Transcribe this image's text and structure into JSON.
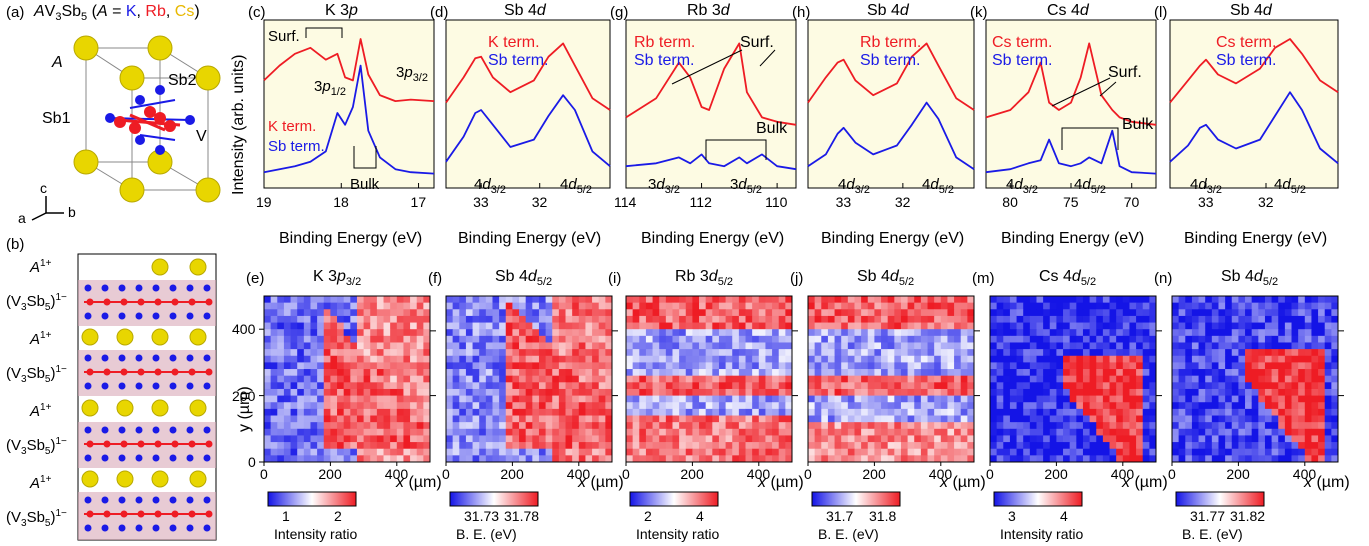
{
  "colors": {
    "red": "#ee1c24",
    "blue": "#1a1ae6",
    "K": "#1a1ae6",
    "Rb": "#ee1c24",
    "Cs": "#e8b800",
    "yellow": "#e8d600",
    "pink": "#d9a8b8"
  },
  "panel_a": {
    "label": "(a)",
    "title_parts": [
      "AV",
      "3",
      "Sb",
      "5",
      " (A = ",
      "K",
      ", ",
      "Rb",
      ", ",
      "Cs",
      ")"
    ],
    "A": "A",
    "Sb2": "Sb2",
    "Sb1": "Sb1",
    "V": "V",
    "ax_c": "c",
    "ax_a": "a",
    "ax_b": "b"
  },
  "panel_b": {
    "label": "(b)",
    "rows": [
      "A1+",
      "(V3Sb5)1−",
      "A1+",
      "(V3Sb5)1−",
      "A1+",
      "(V3Sb5)1−",
      "A1+",
      "(V3Sb5)1−"
    ]
  },
  "spectra": [
    {
      "label": "(c)",
      "title": "K 3p",
      "xticks": [
        "19",
        "18",
        "17"
      ],
      "xlabel": "Binding Energy (eV)",
      "annot": [
        "Surf.",
        "3p1/2",
        "3p3/2",
        "Bulk",
        "K term.",
        "Sb term."
      ]
    },
    {
      "label": "(d)",
      "title": "Sb 4d",
      "xticks": [
        "33",
        "32"
      ],
      "xlabel": "Binding Energy (eV)",
      "annot": [
        "K term.",
        "Sb term.",
        "4d3/2",
        "4d5/2"
      ]
    },
    {
      "label": "(g)",
      "title": "Rb 3d",
      "xticks": [
        "114",
        "112",
        "110"
      ],
      "xlabel": "Binding Energy (eV)",
      "annot": [
        "Rb term.",
        "Sb term.",
        "Surf.",
        "Bulk",
        "3d3/2",
        "3d5/2"
      ]
    },
    {
      "label": "(h)",
      "title": "Sb 4d",
      "xticks": [
        "33",
        "32"
      ],
      "xlabel": "Binding Energy (eV)",
      "annot": [
        "Rb term.",
        "Sb term.",
        "4d3/2",
        "4d5/2"
      ]
    },
    {
      "label": "(k)",
      "title": "Cs 4d",
      "xticks": [
        "80",
        "75",
        "70"
      ],
      "xlabel": "Binding Energy (eV)",
      "annot": [
        "Cs term.",
        "Sb term.",
        "Surf.",
        "Bulk",
        "4d3/2",
        "4d5/2"
      ]
    },
    {
      "label": "(l)",
      "title": "Sb 4d",
      "xticks": [
        "33",
        "32"
      ],
      "xlabel": "Binding Energy (eV)",
      "annot": [
        "Cs term.",
        "Sb term.",
        "4d3/2",
        "4d5/2"
      ]
    }
  ],
  "maps": [
    {
      "label": "(e)",
      "title": "K 3p3/2",
      "cbar_ticks": [
        "1",
        "2"
      ],
      "cbar_label": "Intensity ratio"
    },
    {
      "label": "(f)",
      "title": "Sb 4d5/2",
      "cbar_ticks": [
        "31.73",
        "31.78"
      ],
      "cbar_label": "B. E. (eV)"
    },
    {
      "label": "(i)",
      "title": "Rb 3d5/2",
      "cbar_ticks": [
        "2",
        "4"
      ],
      "cbar_label": "Intensity ratio"
    },
    {
      "label": "(j)",
      "title": "Sb 4d5/2",
      "cbar_ticks": [
        "31.7",
        "31.8"
      ],
      "cbar_label": "B. E. (eV)"
    },
    {
      "label": "(m)",
      "title": "Cs 4d5/2",
      "cbar_ticks": [
        "3",
        "4"
      ],
      "cbar_label": "Intensity ratio"
    },
    {
      "label": "(n)",
      "title": "Sb 4d5/2",
      "cbar_ticks": [
        "31.77",
        "31.82"
      ],
      "cbar_label": "B. E. (eV)"
    }
  ],
  "y_axis_label": "Intensity (arb. units)",
  "map_axes": {
    "xticks": [
      "0",
      "200",
      "400"
    ],
    "yticks": [
      "0",
      "200",
      "400"
    ],
    "xlabel": "x (µm)",
    "ylabel": "y (µm)"
  },
  "chart_data": [
    {
      "type": "line",
      "title": "K 3p",
      "xlabel": "Binding Energy (eV)",
      "ylabel": "Intensity (arb. units)",
      "xlim": [
        19,
        16.8
      ],
      "series": [
        {
          "name": "K term.",
          "x": [
            19,
            18.8,
            18.6,
            18.4,
            18.2,
            18.05,
            17.95,
            17.85,
            17.75,
            17.65,
            17.5,
            17.3,
            17.1,
            16.8
          ],
          "values": [
            0.7,
            0.8,
            0.88,
            0.92,
            0.84,
            0.88,
            0.72,
            0.7,
            0.98,
            0.74,
            0.6,
            0.56,
            0.57,
            0.56
          ]
        },
        {
          "name": "Sb term.",
          "x": [
            19,
            18.8,
            18.6,
            18.4,
            18.2,
            18.05,
            17.95,
            17.85,
            17.75,
            17.65,
            17.5,
            17.3,
            17.1,
            16.8
          ],
          "values": [
            0.08,
            0.1,
            0.12,
            0.15,
            0.22,
            0.48,
            0.4,
            0.52,
            0.8,
            0.36,
            0.18,
            0.1,
            0.08,
            0.07
          ]
        }
      ]
    },
    {
      "type": "line",
      "title": "Sb 4d",
      "xlabel": "Binding Energy (eV)",
      "ylabel": "",
      "xlim": [
        33.6,
        30.8
      ],
      "series": [
        {
          "name": "K term.",
          "x": [
            33.6,
            33.3,
            33.1,
            33.0,
            32.8,
            32.5,
            32.1,
            31.85,
            31.6,
            31.4,
            31.1,
            30.8
          ],
          "values": [
            0.55,
            0.72,
            0.85,
            0.86,
            0.72,
            0.62,
            0.7,
            0.86,
            0.95,
            0.8,
            0.58,
            0.5
          ]
        },
        {
          "name": "Sb term.",
          "x": [
            33.6,
            33.3,
            33.1,
            33.0,
            32.8,
            32.5,
            32.1,
            31.85,
            31.6,
            31.4,
            31.1,
            30.8
          ],
          "values": [
            0.15,
            0.32,
            0.48,
            0.5,
            0.4,
            0.25,
            0.3,
            0.46,
            0.6,
            0.5,
            0.22,
            0.12
          ]
        }
      ]
    },
    {
      "type": "line",
      "title": "Rb 3d",
      "xlabel": "Binding Energy (eV)",
      "ylabel": "",
      "xlim": [
        114,
        109.5
      ],
      "series": [
        {
          "name": "Rb term.",
          "x": [
            114,
            113.2,
            112.6,
            112.3,
            112.0,
            111.8,
            111.4,
            111.0,
            110.8,
            110.4,
            110.0,
            109.5
          ],
          "values": [
            0.45,
            0.58,
            0.82,
            0.72,
            0.52,
            0.5,
            0.78,
            0.95,
            0.62,
            0.45,
            0.42,
            0.4
          ]
        },
        {
          "name": "Sb term.",
          "x": [
            114,
            113.2,
            112.6,
            112.3,
            112.0,
            111.8,
            111.4,
            111.0,
            110.8,
            110.4,
            110.0,
            109.5
          ],
          "values": [
            0.12,
            0.14,
            0.18,
            0.14,
            0.2,
            0.14,
            0.12,
            0.18,
            0.14,
            0.2,
            0.12,
            0.1
          ]
        }
      ]
    },
    {
      "type": "line",
      "title": "Sb 4d",
      "xlabel": "Binding Energy (eV)",
      "ylabel": "",
      "xlim": [
        33.6,
        30.8
      ],
      "series": [
        {
          "name": "Rb term.",
          "x": [
            33.6,
            33.3,
            33.1,
            33.0,
            32.8,
            32.5,
            32.1,
            31.85,
            31.6,
            31.4,
            31.1,
            30.8
          ],
          "values": [
            0.55,
            0.72,
            0.82,
            0.84,
            0.7,
            0.6,
            0.68,
            0.86,
            0.95,
            0.8,
            0.58,
            0.5
          ]
        },
        {
          "name": "Sb term.",
          "x": [
            33.6,
            33.3,
            33.1,
            33.0,
            32.8,
            32.5,
            32.1,
            31.85,
            31.6,
            31.4,
            31.1,
            30.8
          ],
          "values": [
            0.12,
            0.2,
            0.34,
            0.38,
            0.28,
            0.2,
            0.26,
            0.4,
            0.55,
            0.44,
            0.18,
            0.1
          ]
        }
      ]
    },
    {
      "type": "line",
      "title": "Cs 4d",
      "xlabel": "Binding Energy (eV)",
      "ylabel": "",
      "xlim": [
        82,
        68
      ],
      "series": [
        {
          "name": "Cs term.",
          "x": [
            82,
            80,
            78.5,
            77.5,
            76.8,
            76,
            75,
            74.2,
            73.5,
            72.5,
            71.6,
            71,
            70,
            68
          ],
          "values": [
            0.45,
            0.5,
            0.62,
            0.82,
            0.55,
            0.5,
            0.55,
            0.72,
            0.95,
            0.6,
            0.5,
            0.45,
            0.42,
            0.4
          ]
        },
        {
          "name": "Sb term.",
          "x": [
            82,
            80,
            78.5,
            77.5,
            76.8,
            76,
            75,
            74.2,
            73.5,
            72.5,
            71.6,
            71,
            70,
            68
          ],
          "values": [
            0.08,
            0.1,
            0.14,
            0.16,
            0.3,
            0.14,
            0.12,
            0.14,
            0.18,
            0.14,
            0.36,
            0.12,
            0.08,
            0.07
          ]
        }
      ]
    },
    {
      "type": "line",
      "title": "Sb 4d",
      "xlabel": "Binding Energy (eV)",
      "ylabel": "",
      "xlim": [
        33.6,
        30.8
      ],
      "series": [
        {
          "name": "Cs term.",
          "x": [
            33.6,
            33.3,
            33.1,
            33.0,
            32.8,
            32.5,
            32.1,
            31.85,
            31.6,
            31.4,
            31.1,
            30.8
          ],
          "values": [
            0.55,
            0.7,
            0.8,
            0.84,
            0.74,
            0.68,
            0.78,
            0.92,
            0.98,
            0.88,
            0.7,
            0.62
          ]
        },
        {
          "name": "Sb term.",
          "x": [
            33.6,
            33.3,
            33.1,
            33.0,
            32.8,
            32.5,
            32.1,
            31.85,
            31.6,
            31.4,
            31.1,
            30.8
          ],
          "values": [
            0.15,
            0.26,
            0.38,
            0.4,
            0.3,
            0.24,
            0.3,
            0.46,
            0.62,
            0.5,
            0.24,
            0.14
          ]
        }
      ]
    },
    {
      "type": "heatmap",
      "title": "K 3p3/2",
      "xlabel": "x (µm)",
      "ylabel": "y (µm)",
      "xlim": [
        0,
        500
      ],
      "ylim": [
        0,
        500
      ],
      "colorbar": {
        "label": "Intensity ratio",
        "range": [
          0.5,
          2.3
        ]
      }
    },
    {
      "type": "heatmap",
      "title": "Sb 4d5/2",
      "xlabel": "x (µm)",
      "ylabel": "y (µm)",
      "xlim": [
        0,
        500
      ],
      "ylim": [
        0,
        500
      ],
      "colorbar": {
        "label": "B. E. (eV)",
        "range": [
          31.71,
          31.79
        ]
      }
    },
    {
      "type": "heatmap",
      "title": "Rb 3d5/2",
      "xlabel": "x (µm)",
      "ylabel": "y (µm)",
      "xlim": [
        0,
        500
      ],
      "ylim": [
        0,
        500
      ],
      "colorbar": {
        "label": "Intensity ratio",
        "range": [
          1,
          4.3
        ]
      }
    },
    {
      "type": "heatmap",
      "title": "Sb 4d5/2",
      "xlabel": "x (µm)",
      "ylabel": "y (µm)",
      "xlim": [
        0,
        500
      ],
      "ylim": [
        0,
        500
      ],
      "colorbar": {
        "label": "B. E. (eV)",
        "range": [
          31.65,
          31.85
        ]
      }
    },
    {
      "type": "heatmap",
      "title": "Cs 4d5/2",
      "xlabel": "x (µm)",
      "ylabel": "y (µm)",
      "xlim": [
        0,
        500
      ],
      "ylim": [
        0,
        500
      ],
      "colorbar": {
        "label": "Intensity ratio",
        "range": [
          2.5,
          4.5
        ]
      }
    },
    {
      "type": "heatmap",
      "title": "Sb 4d5/2",
      "xlabel": "x (µm)",
      "ylabel": "y (µm)",
      "xlim": [
        0,
        500
      ],
      "ylim": [
        0,
        500
      ],
      "colorbar": {
        "label": "B. E. (eV)",
        "range": [
          31.75,
          31.84
        ]
      }
    }
  ]
}
